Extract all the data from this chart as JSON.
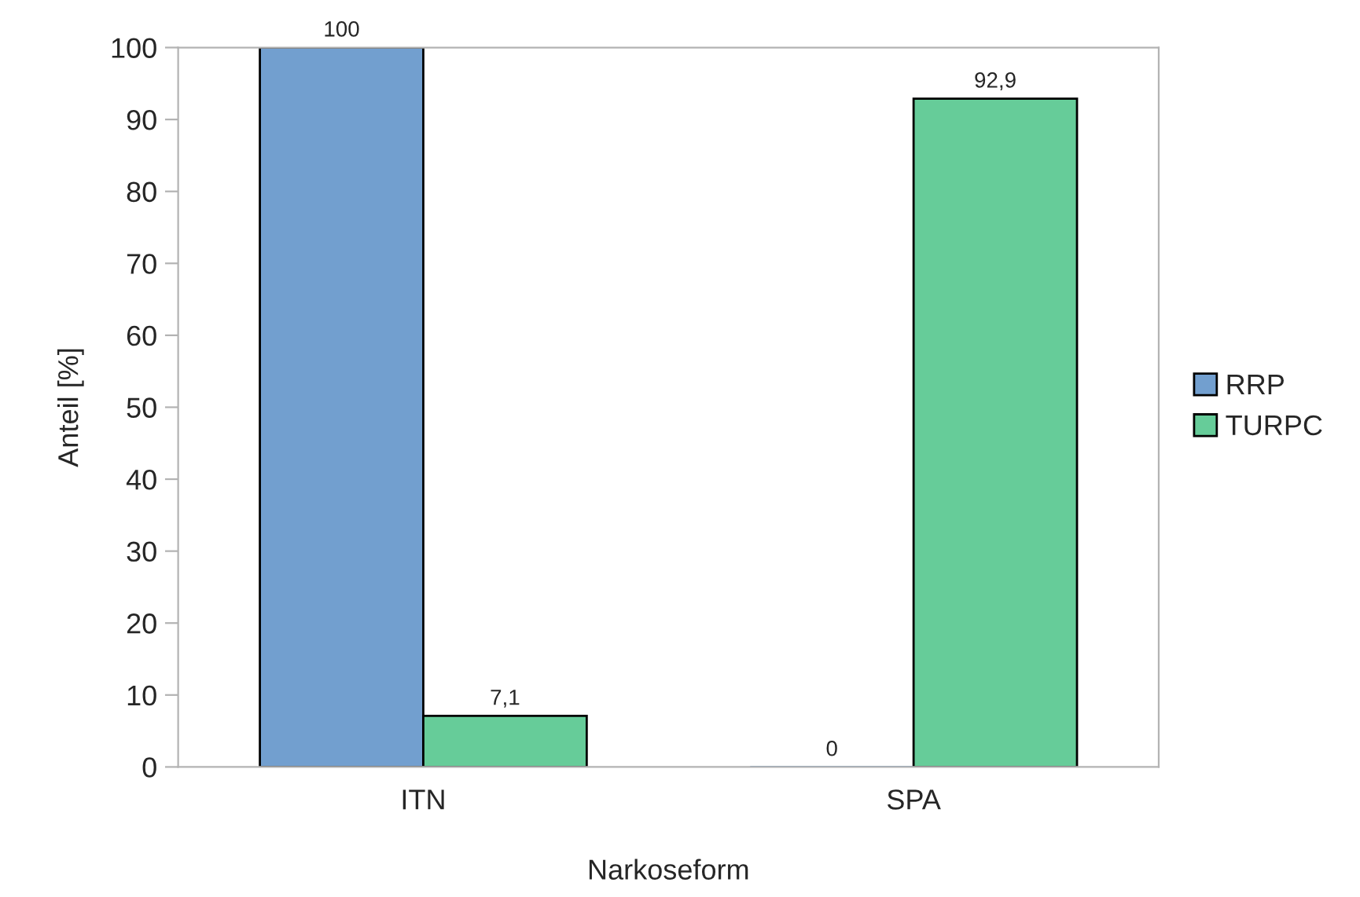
{
  "chart_data": {
    "type": "bar",
    "xlabel": "Narkoseform",
    "ylabel": "Anteil [%]",
    "categories": [
      "ITN",
      "SPA"
    ],
    "series": [
      {
        "name": "RRP",
        "color": "#729fcf",
        "values": [
          100,
          0
        ],
        "value_labels": [
          "100",
          "0"
        ]
      },
      {
        "name": "TURPC",
        "color": "#66cc99",
        "values": [
          7.1,
          92.9
        ],
        "value_labels": [
          "7,1",
          "92,9"
        ]
      }
    ],
    "ylim": [
      0,
      100
    ],
    "yticks": [
      0,
      10,
      20,
      30,
      40,
      50,
      60,
      70,
      80,
      90,
      100
    ],
    "grid": false,
    "legend": "right"
  }
}
